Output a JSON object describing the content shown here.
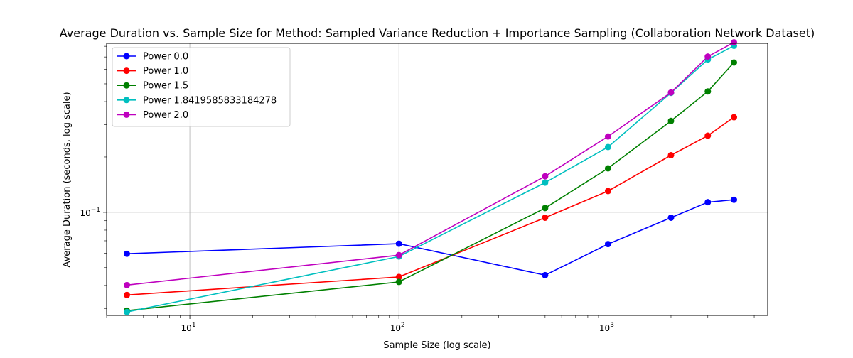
{
  "chart_data": {
    "type": "line",
    "title": "Average Duration vs. Sample Size for Method: Sampled Variance Reduction + Importance Sampling (Collaboration Network Dataset)",
    "xlabel": "Sample Size (log scale)",
    "ylabel": "Average Duration (seconds, log scale)",
    "x_scale": "log",
    "y_scale": "log",
    "xlim": [
      4,
      5800
    ],
    "ylim": [
      0.0275,
      0.83
    ],
    "x_ticks": [
      {
        "value": 10,
        "base": "10",
        "exp": "1"
      },
      {
        "value": 100,
        "base": "10",
        "exp": "2"
      },
      {
        "value": 1000,
        "base": "10",
        "exp": "3"
      }
    ],
    "y_ticks": [
      {
        "value": 0.1,
        "base": "10",
        "exp": "−1"
      }
    ],
    "grid": true,
    "legend_position": "top-left",
    "x": [
      5,
      100,
      500,
      1000,
      2000,
      3000,
      4000
    ],
    "series": [
      {
        "name": "Power 0.0",
        "color": "#0000ff",
        "values": [
          0.0595,
          0.0675,
          0.0455,
          0.0672,
          0.0935,
          0.1135,
          0.117
        ]
      },
      {
        "name": "Power 1.0",
        "color": "#ff0000",
        "values": [
          0.0355,
          0.0445,
          0.0935,
          0.1305,
          0.2045,
          0.261,
          0.329
        ]
      },
      {
        "name": "Power 1.5",
        "color": "#008000",
        "values": [
          0.0292,
          0.0418,
          0.1055,
          0.1735,
          0.314,
          0.4545,
          0.653
        ]
      },
      {
        "name": "Power 1.8419585833184278",
        "color": "#00bfbf",
        "values": [
          0.0287,
          0.0575,
          0.145,
          0.2265,
          0.4465,
          0.6775,
          0.805
        ]
      },
      {
        "name": "Power 2.0",
        "color": "#bf00bf",
        "values": [
          0.0402,
          0.0585,
          0.157,
          0.2585,
          0.4485,
          0.7035,
          0.84
        ]
      }
    ]
  }
}
